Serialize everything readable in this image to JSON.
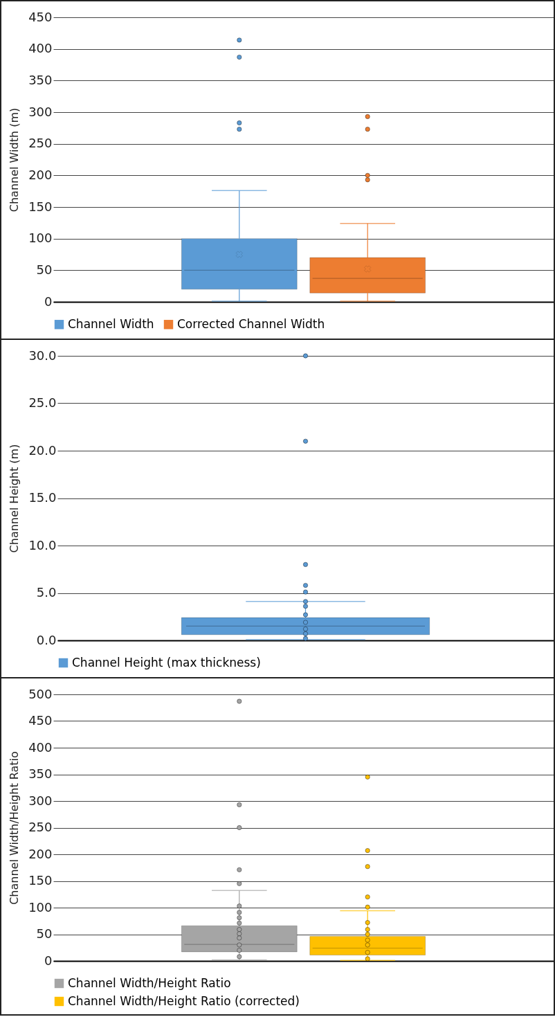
{
  "chart_data": [
    {
      "type": "box",
      "ylabel": "Channel Width (m)",
      "categories": [
        null
      ],
      "ylim": [
        0,
        450
      ],
      "yticks": [
        0,
        50,
        100,
        150,
        200,
        250,
        300,
        350,
        400,
        450
      ],
      "grid": "y",
      "legend": "bottom",
      "series": [
        {
          "name": "Channel Width",
          "color": "#5b9bd5",
          "boxes": [
            {
              "low": 1,
              "q1": 20,
              "median": 50,
              "q3": 100,
              "high": 176,
              "mean": 75,
              "outliers": [
                414,
                387,
                283,
                273
              ]
            }
          ]
        },
        {
          "name": "Corrected Channel Width",
          "color": "#ed7d31",
          "boxes": [
            {
              "low": 1,
              "q1": 14,
              "median": 37,
              "q3": 70,
              "high": 124,
              "mean": 52,
              "outliers": [
                293,
                273,
                200,
                193
              ]
            }
          ]
        }
      ]
    },
    {
      "type": "box",
      "ylabel": "Channel Height (m)",
      "categories": [
        null
      ],
      "ylim": [
        0,
        30
      ],
      "yticks": [
        {
          "value": 0,
          "label": "0.0"
        },
        {
          "value": 5,
          "label": "5.0"
        },
        {
          "value": 10,
          "label": "10.0"
        },
        {
          "value": 15,
          "label": "15.0"
        },
        {
          "value": 20,
          "label": "20.0"
        },
        {
          "value": 25,
          "label": "25.0"
        },
        {
          "value": 30,
          "label": "30.0"
        }
      ],
      "grid": "y",
      "legend": "bottom",
      "series": [
        {
          "name": "Channel Height (max thickness)",
          "color": "#5b9bd5",
          "boxes": [
            {
              "low": 0.1,
              "q1": 0.6,
              "median": 1.5,
              "q3": 2.4,
              "high": 4.1,
              "outliers": [
                30,
                21,
                8,
                5.8,
                5.1,
                4.1,
                3.6,
                2.7,
                1.9,
                1.2,
                0.7,
                0.2
              ]
            }
          ]
        }
      ]
    },
    {
      "type": "box",
      "ylabel": "Channel Width/Height Ratio",
      "categories": [
        null
      ],
      "ylim": [
        0,
        500
      ],
      "yticks": [
        0,
        50,
        100,
        150,
        200,
        250,
        300,
        350,
        400,
        450,
        500
      ],
      "grid": "y",
      "legend": "bottom",
      "series": [
        {
          "name": "Channel Width/Height Ratio",
          "color": "#a5a5a5",
          "boxes": [
            {
              "low": 2,
              "q1": 17,
              "median": 31,
              "q3": 66,
              "high": 132,
              "outliers": [
                487,
                293,
                250,
                171,
                145,
                103,
                91,
                81,
                71,
                59,
                51,
                43,
                30,
                20,
                8
              ]
            }
          ]
        },
        {
          "name": "Channel Width/Height Ratio (corrected)",
          "color": "#ffc000",
          "boxes": [
            {
              "low": 1,
              "q1": 11,
              "median": 24,
              "q3": 46,
              "high": 94,
              "outliers": [
                345,
                207,
                177,
                120,
                101,
                72,
                59,
                50,
                39,
                30,
                16,
                4
              ]
            }
          ]
        }
      ]
    }
  ]
}
